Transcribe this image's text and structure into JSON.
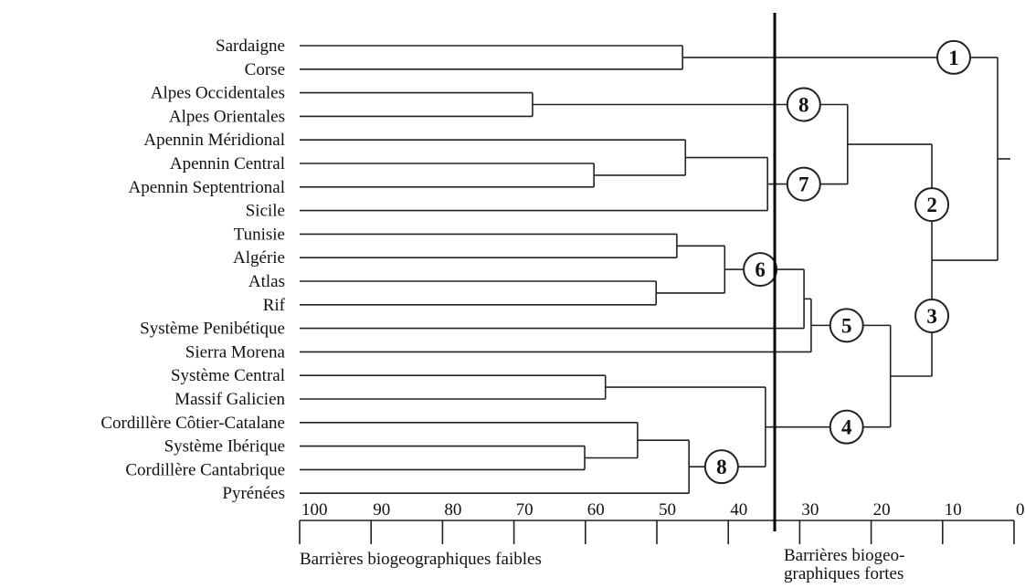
{
  "dendrogram": {
    "tree": {
      "height": 2.3,
      "children": [
        {
          "height": 46.4,
          "label": "1",
          "children": [
            {
              "label": "Sardaigne"
            },
            {
              "label": "Corse"
            }
          ]
        },
        {
          "height": 11.5,
          "children": [
            {
              "height": 23.3,
              "label": "2",
              "children": [
                {
                  "height": 67.4,
                  "label": "8",
                  "children": [
                    {
                      "label": "Alpes Occidentales"
                    },
                    {
                      "label": "Alpes Orientales"
                    }
                  ]
                },
                {
                  "height": 34.5,
                  "label": "7",
                  "children": [
                    {
                      "height": 46,
                      "children": [
                        {
                          "label": "Apennin Méridional"
                        },
                        {
                          "height": 58.8,
                          "children": [
                            {
                              "label": "Apennin Central"
                            },
                            {
                              "label": "Apennin Septentrional"
                            }
                          ]
                        }
                      ]
                    },
                    {
                      "label": "Sicile"
                    }
                  ]
                }
              ]
            },
            {
              "height": 17.3,
              "label": "3",
              "children": [
                {
                  "height": 28.4,
                  "label": "5",
                  "children": [
                    {
                      "height": 29.4,
                      "children": [
                        {
                          "height": 40.5,
                          "label": "6",
                          "children": [
                            {
                              "height": 47.2,
                              "children": [
                                {
                                  "label": "Tunisie"
                                },
                                {
                                  "label": "Algérie"
                                }
                              ]
                            },
                            {
                              "height": 50.1,
                              "children": [
                                {
                                  "label": "Atlas"
                                },
                                {
                                  "label": "Rif"
                                }
                              ]
                            }
                          ]
                        },
                        {
                          "label": "Système Penibétique"
                        }
                      ]
                    },
                    {
                      "label": "Sierra Morena"
                    }
                  ]
                },
                {
                  "height": 34.8,
                  "label": "4",
                  "children": [
                    {
                      "height": 57.2,
                      "children": [
                        {
                          "label": "Système Central"
                        },
                        {
                          "label": "Massif Galicien"
                        }
                      ]
                    },
                    {
                      "height": 45.5,
                      "label": "8",
                      "children": [
                        {
                          "height": 52.7,
                          "children": [
                            {
                              "label": "Cordillère Côtier-Catalane"
                            },
                            {
                              "height": 60.1,
                              "children": [
                                {
                                  "label": "Système Ibérique"
                                },
                                {
                                  "label": "Cordillère Cantabrique"
                                }
                              ]
                            }
                          ]
                        },
                        {
                          "label": "Pyrénées"
                        }
                      ]
                    }
                  ]
                }
              ]
            }
          ]
        }
      ]
    },
    "xlim": [
      100,
      0
    ],
    "xticks": [
      100,
      90,
      80,
      70,
      60,
      50,
      40,
      30,
      20,
      10,
      0
    ],
    "threshold": 33.5,
    "axis_label_left": "Barrières biogeographiques faibles",
    "axis_label_right": [
      "Barrières biogeo-",
      "graphiques fortes"
    ]
  }
}
